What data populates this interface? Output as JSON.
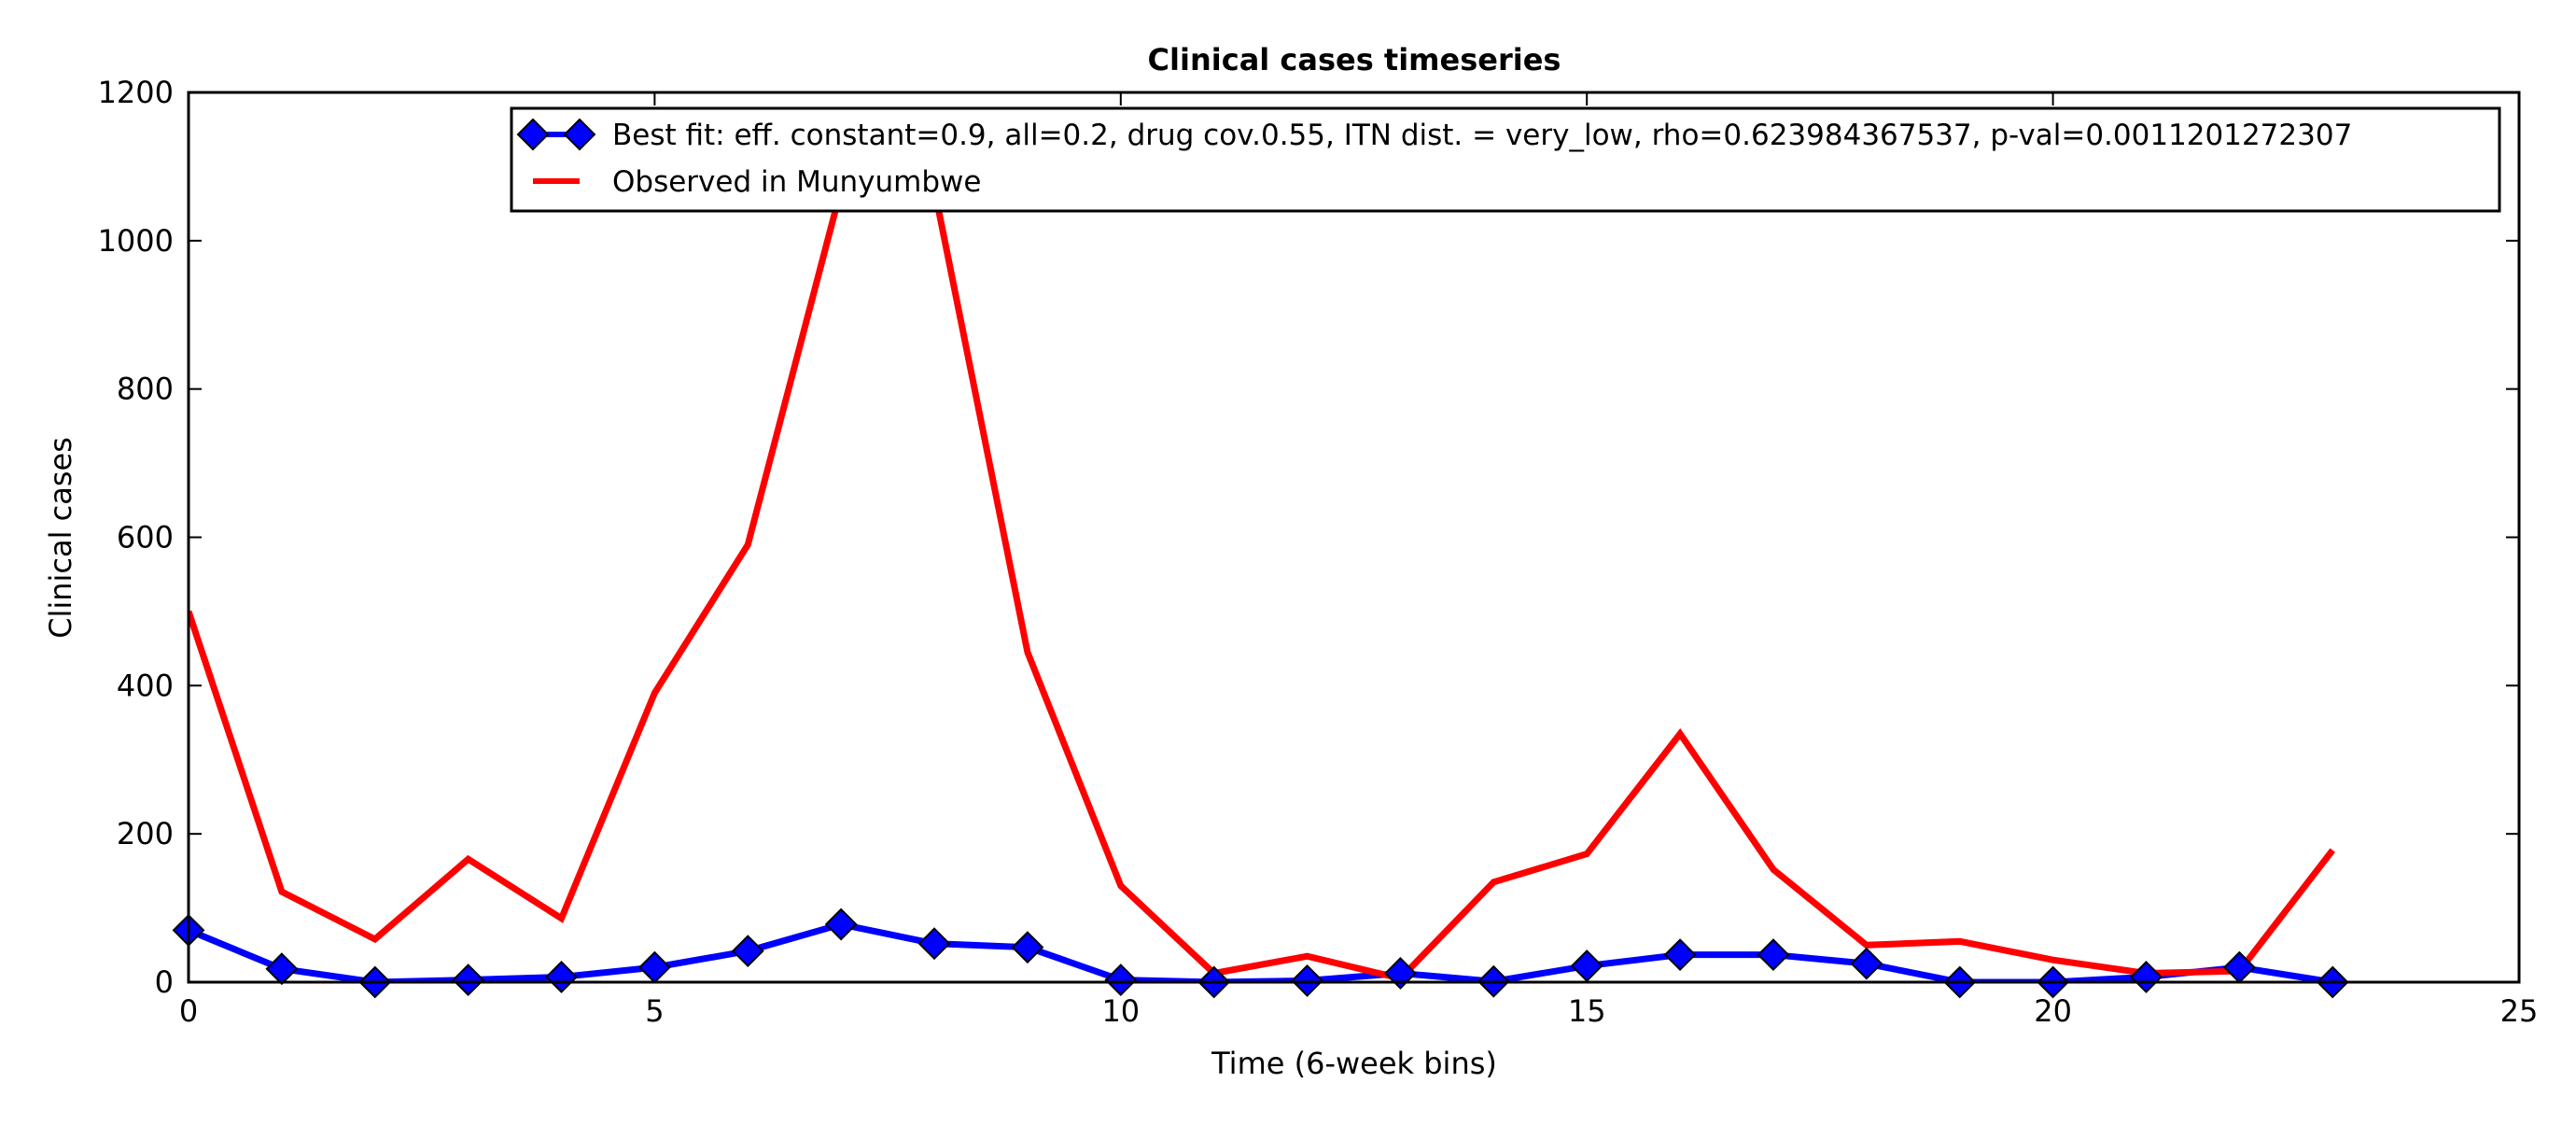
{
  "chart_data": {
    "type": "line",
    "title": "Clinical cases timeseries",
    "xlabel": "Time (6-week bins)",
    "ylabel": "Clinical cases",
    "xlim": [
      0,
      25
    ],
    "ylim": [
      0,
      1200
    ],
    "xticks": [
      0,
      5,
      10,
      15,
      20,
      25
    ],
    "yticks": [
      0,
      200,
      400,
      600,
      800,
      1000,
      1200
    ],
    "grid": false,
    "legend_position": "top-right",
    "x": [
      0,
      1,
      2,
      3,
      4,
      5,
      6,
      7,
      8,
      9,
      10,
      11,
      12,
      13,
      14,
      15,
      16,
      17,
      18,
      19,
      20,
      21,
      22,
      23
    ],
    "series": [
      {
        "name": "Best fit: eff. constant=0.9, all=0.2, drug cov.0.55, ITN dist. = very_low, rho=0.623984367537, p-val=0.0011201272307",
        "color": "#0000ff",
        "marker": "diamond",
        "values": [
          70,
          18,
          0,
          3,
          7,
          20,
          42,
          78,
          52,
          47,
          3,
          0,
          2,
          12,
          1,
          22,
          37,
          37,
          25,
          0,
          0,
          7,
          20,
          0
        ]
      },
      {
        "name": "Observed in Munyumbwe",
        "color": "#ff0000",
        "marker": "none",
        "values": [
          500,
          122,
          58,
          166,
          86,
          390,
          590,
          1070,
          1070,
          445,
          130,
          12,
          35,
          5,
          135,
          173,
          335,
          152,
          50,
          55,
          30,
          12,
          15,
          178
        ]
      }
    ]
  }
}
